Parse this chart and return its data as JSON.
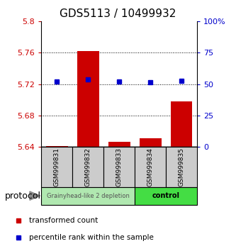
{
  "title": "GDS5113 / 10499932",
  "samples": [
    "GSM999831",
    "GSM999832",
    "GSM999833",
    "GSM999834",
    "GSM999835"
  ],
  "red_values": [
    5.641,
    5.762,
    5.646,
    5.651,
    5.698
  ],
  "blue_values": [
    52.0,
    54.0,
    52.0,
    51.5,
    52.5
  ],
  "ylim_left": [
    5.64,
    5.8
  ],
  "ylim_right": [
    0,
    100
  ],
  "yticks_left": [
    5.64,
    5.68,
    5.72,
    5.76,
    5.8
  ],
  "yticks_right": [
    0,
    25,
    50,
    75,
    100
  ],
  "ytick_labels_left": [
    "5.64",
    "5.68",
    "5.72",
    "5.76",
    "5.8"
  ],
  "ytick_labels_right": [
    "0",
    "25",
    "50",
    "75",
    "100%"
  ],
  "group1_label": "Grainyhead-like 2 depletion",
  "group2_label": "control",
  "group1_color": "#b0e8b0",
  "group2_color": "#44dd44",
  "protocol_label": "protocol",
  "red_color": "#cc0000",
  "blue_color": "#0000cc",
  "bar_bg_color": "#cccccc",
  "bar_border_color": "#888888",
  "grid_dotted_ticks": [
    5.68,
    5.72,
    5.76
  ],
  "legend_red_label": "transformed count",
  "legend_blue_label": "percentile rank within the sample",
  "title_fontsize": 11,
  "tick_fontsize": 8,
  "sample_fontsize": 6.5,
  "group_fontsize": 7,
  "legend_fontsize": 7.5,
  "protocol_fontsize": 9
}
